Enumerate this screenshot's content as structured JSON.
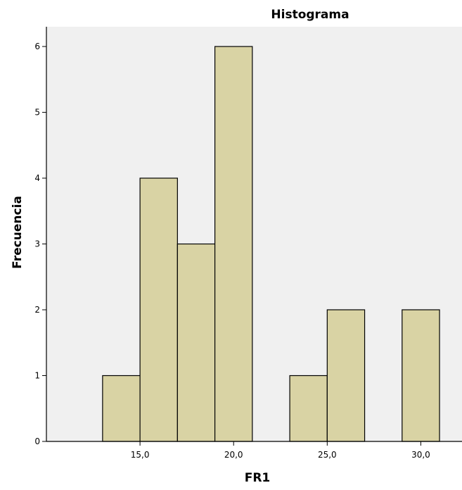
{
  "chart_data": {
    "type": "bar",
    "title": "Histograma",
    "xlabel": "FR1",
    "ylabel": "Frecuencia",
    "bin_width": 2,
    "bins": [
      {
        "start": 13,
        "end": 15,
        "count": 1
      },
      {
        "start": 15,
        "end": 17,
        "count": 4
      },
      {
        "start": 17,
        "end": 19,
        "count": 3
      },
      {
        "start": 19,
        "end": 21,
        "count": 6
      },
      {
        "start": 21,
        "end": 23,
        "count": 0
      },
      {
        "start": 23,
        "end": 25,
        "count": 1
      },
      {
        "start": 25,
        "end": 27,
        "count": 2
      },
      {
        "start": 27,
        "end": 29,
        "count": 0
      },
      {
        "start": 29,
        "end": 31,
        "count": 2
      }
    ],
    "xlim": [
      10,
      32.2
    ],
    "ylim": [
      0,
      6.3
    ],
    "x_ticks": [
      {
        "value": 15,
        "label": "15,0"
      },
      {
        "value": 20,
        "label": "20,0"
      },
      {
        "value": 25,
        "label": "25,0"
      },
      {
        "value": 30,
        "label": "30,0"
      }
    ],
    "y_ticks": [
      {
        "value": 0,
        "label": "0"
      },
      {
        "value": 1,
        "label": "1"
      },
      {
        "value": 2,
        "label": "2"
      },
      {
        "value": 3,
        "label": "3"
      },
      {
        "value": 4,
        "label": "4"
      },
      {
        "value": 5,
        "label": "5"
      },
      {
        "value": 6,
        "label": "6"
      }
    ],
    "grid": false,
    "colors": {
      "bar_fill": "#d9d3a4",
      "bar_stroke": "#000000",
      "plot_background": "#f0f0f0",
      "axis": "#000000"
    }
  }
}
